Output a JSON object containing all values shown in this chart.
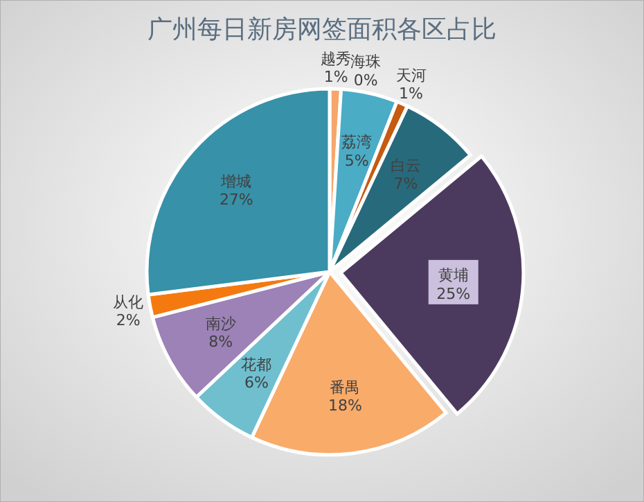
{
  "chart_data": {
    "type": "pie",
    "title": "广州每日新房网签面积各区占比",
    "categories": [
      "越秀",
      "荔湾",
      "海珠",
      "天河",
      "白云",
      "黄埔",
      "番禺",
      "花都",
      "南沙",
      "从化",
      "增城"
    ],
    "values": [
      1,
      5,
      0,
      1,
      7,
      25,
      18,
      6,
      8,
      2,
      27
    ],
    "value_labels": [
      "1%",
      "5%",
      "0%",
      "1%",
      "7%",
      "25%",
      "18%",
      "6%",
      "8%",
      "2%",
      "27%"
    ],
    "colors": [
      "#f6a66a",
      "#4bacc6",
      "#c0504d",
      "#c55a11",
      "#276a7c",
      "#4b3a5e",
      "#f9ab6a",
      "#6fbfcf",
      "#9c82b6",
      "#f47a10",
      "#3791a8"
    ]
  }
}
